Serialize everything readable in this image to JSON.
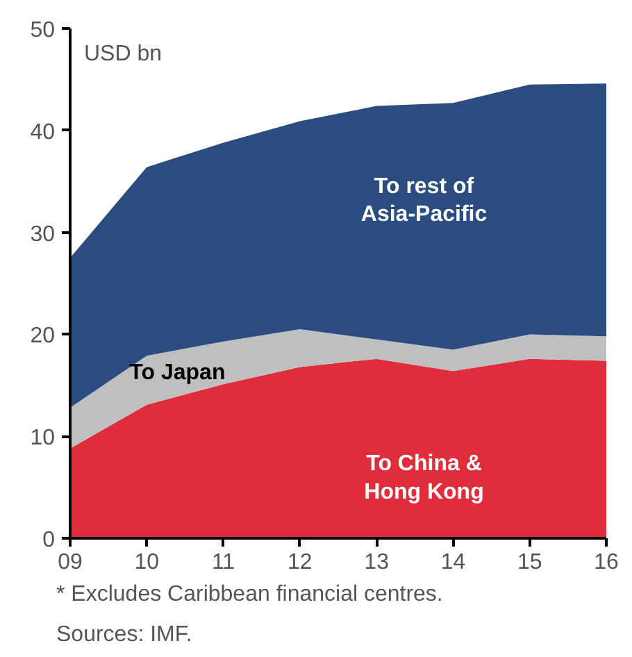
{
  "chart_data": {
    "type": "area",
    "stacked": true,
    "ylabel": "USD bn",
    "x": [
      2009,
      2010,
      2011,
      2012,
      2013,
      2014,
      2015,
      2016
    ],
    "series": [
      {
        "name": "To China &\nHong Kong",
        "color": "#e02d3c",
        "values": [
          8.8,
          13.1,
          15.1,
          16.8,
          17.6,
          16.4,
          17.6,
          17.4
        ]
      },
      {
        "name": "To Japan",
        "color": "#bfbfc1",
        "values": [
          4.0,
          4.8,
          4.2,
          3.7,
          1.9,
          2.1,
          2.4,
          2.4
        ]
      },
      {
        "name": "To rest of\nAsia-Pacific",
        "color": "#2b4c7e",
        "values": [
          14.7,
          18.5,
          19.5,
          20.4,
          22.9,
          24.2,
          24.5,
          24.8
        ]
      }
    ],
    "xlim": [
      2009,
      2016
    ],
    "ylim": [
      0,
      50
    ],
    "xticks": [
      {
        "value": 2009,
        "label": "09"
      },
      {
        "value": 2010,
        "label": "10"
      },
      {
        "value": 2011,
        "label": "11"
      },
      {
        "value": 2012,
        "label": "12"
      },
      {
        "value": 2013,
        "label": "13"
      },
      {
        "value": 2014,
        "label": "14"
      },
      {
        "value": 2015,
        "label": "15"
      },
      {
        "value": 2016,
        "label": "16"
      }
    ],
    "yticks": [
      0,
      10,
      20,
      30,
      40,
      50
    ],
    "grid": false,
    "annotations": [
      "* Excludes Caribbean financial centres.",
      "Sources: IMF."
    ]
  }
}
